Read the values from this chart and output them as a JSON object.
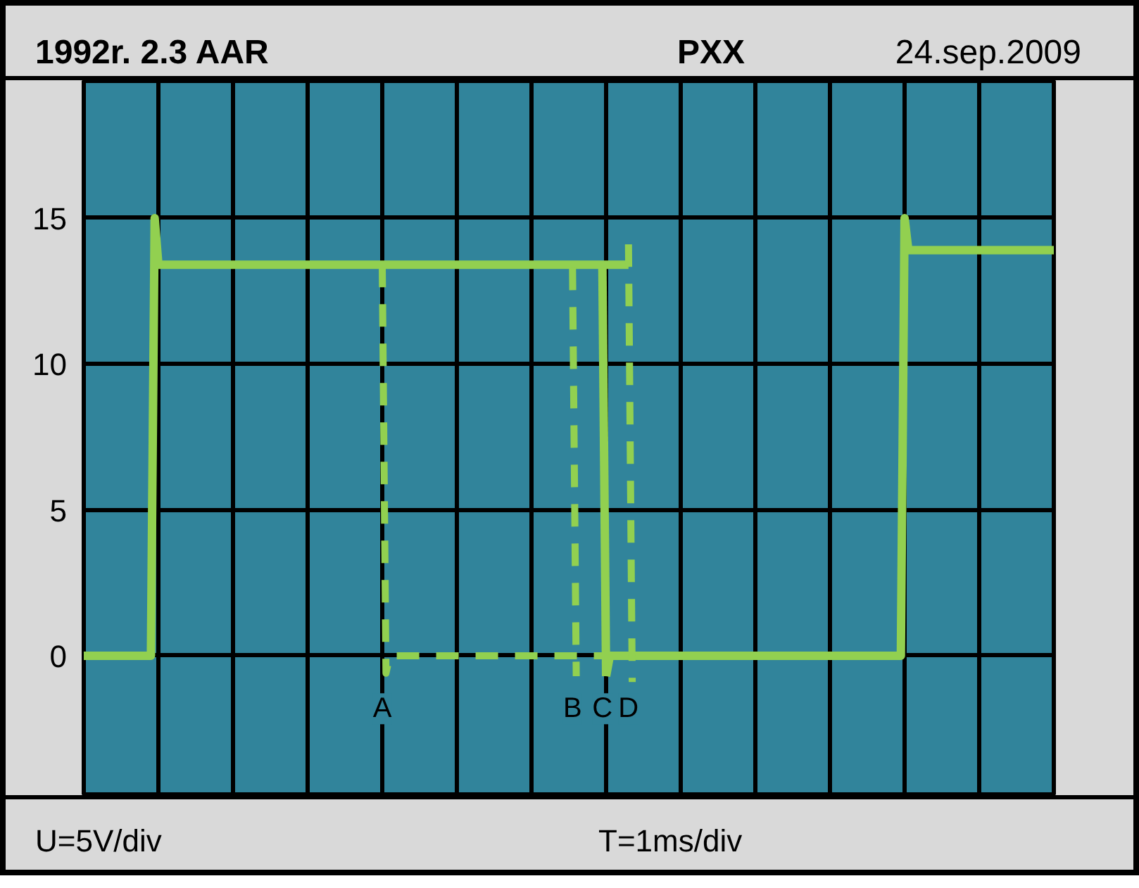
{
  "chart_data": {
    "type": "line",
    "title": "1992r. 2.3 AAR",
    "subtitle": "PXX",
    "xlabel": "T=1ms/div",
    "ylabel": "U=5V/div",
    "annotations": [
      "24.sep.2009"
    ],
    "categories": [
      null,
      null,
      null,
      null,
      null,
      null,
      null,
      null,
      null,
      null,
      null,
      null,
      null,
      null,
      null,
      null,
      null,
      null,
      null,
      null,
      null,
      null,
      null,
      null,
      null,
      null,
      null,
      null,
      null,
      null,
      null,
      null,
      null,
      null,
      null,
      null,
      null,
      null,
      null,
      null,
      null,
      null,
      null,
      null,
      null,
      null,
      null,
      null,
      null,
      null,
      null,
      null,
      null,
      null,
      null,
      null,
      null,
      null,
      null,
      null,
      null,
      null,
      null,
      null,
      null,
      null,
      null,
      null,
      null,
      null,
      null,
      null,
      null,
      null,
      null,
      null,
      null,
      null,
      null,
      null,
      null,
      null,
      null,
      null,
      null,
      null,
      null,
      null,
      null,
      null,
      null,
      null,
      null,
      null,
      null,
      null,
      null,
      null,
      null,
      null,
      null,
      null,
      null,
      null,
      null,
      null,
      null,
      null,
      null,
      null,
      null,
      null,
      null,
      null,
      null,
      null,
      null,
      null,
      null,
      null,
      null,
      null,
      null,
      null,
      null,
      null,
      null,
      null,
      null,
      null,
      null,
      null,
      null,
      null,
      null,
      null,
      null,
      null,
      null,
      null,
      null,
      null,
      null,
      null,
      null,
      null,
      null,
      null,
      null,
      null,
      null,
      null,
      null,
      null,
      null,
      null,
      null,
      null,
      null,
      null,
      null,
      null,
      null,
      null,
      null,
      null,
      null,
      null,
      null,
      null,
      null,
      null,
      null,
      null,
      null,
      null,
      null,
      null,
      null,
      null,
      null,
      null,
      null,
      null,
      null,
      null,
      null,
      null,
      null,
      null,
      null,
      null,
      null,
      null,
      null,
      null,
      null,
      null,
      null,
      null,
      null,
      null,
      null,
      null,
      null,
      null,
      null,
      null,
      null,
      null,
      null,
      null,
      null,
      null,
      null,
      null,
      null,
      null,
      null,
      null,
      null,
      null,
      null,
      null,
      null,
      null,
      null,
      null,
      null,
      null,
      null,
      null,
      null,
      null,
      null,
      null,
      null,
      null,
      null,
      null,
      null,
      null,
      null,
      null,
      null,
      null,
      null,
      null,
      null,
      null,
      null,
      null,
      null,
      null,
      null,
      null,
      null,
      null,
      null,
      null,
      null
    ],
    "ylim": [
      -4.8,
      19.7
    ],
    "yticks": [
      0,
      5,
      10,
      15
    ],
    "tick_labels": "y",
    "grid": true,
    "series": [
      {
        "color": "#92d050",
        "line_style": "solid",
        "values": [
          0,
          0,
          0,
          0,
          0,
          0,
          0,
          0,
          0,
          0,
          0,
          0,
          0,
          0,
          0,
          0,
          0,
          0,
          0,
          15,
          13.4,
          13.4,
          13.4,
          13.4,
          13.4,
          13.4,
          13.4,
          13.4,
          13.4,
          13.4,
          13.4,
          13.4,
          13.4,
          13.4,
          13.4,
          13.4,
          13.4,
          13.4,
          13.4,
          13.4,
          13.4,
          13.4,
          13.4,
          13.4,
          13.4,
          13.4,
          13.4,
          13.4,
          13.4,
          13.4,
          13.4,
          13.4,
          13.4,
          13.4,
          13.4,
          13.4,
          13.4,
          13.4,
          13.4,
          13.4,
          13.4,
          13.4,
          13.4,
          13.4,
          13.4,
          13.4,
          13.4,
          13.4,
          13.4,
          13.4,
          13.4,
          13.4,
          13.4,
          13.4,
          13.4,
          13.4,
          13.4,
          13.4,
          13.4,
          13.4,
          13.4,
          13.4,
          13.4,
          13.4,
          13.4,
          13.4,
          13.4,
          13.4,
          13.4,
          13.4,
          13.4,
          13.4,
          13.4,
          13.4,
          13.4,
          13.4,
          13.4,
          13.4,
          13.4,
          13.4,
          13.4,
          13.4,
          13.4,
          13.4,
          13.4,
          13.4,
          13.4,
          13.4,
          13.4,
          13.4,
          13.4,
          13.4,
          13.4,
          13.4,
          13.4,
          13.4,
          13.4,
          13.4,
          13.4,
          13.4,
          13.4,
          13.4,
          13.4,
          13.4,
          13.4,
          13.4,
          13.4,
          13.4,
          13.4,
          13.4,
          13.4,
          13.4,
          13.4,
          13.4,
          13.4,
          13.4,
          13.4,
          13.4,
          13.4,
          13.4,
          13.4,
          13.4,
          13.4,
          13.4,
          13.4,
          13.4,
          13.4,
          null,
          null,
          null,
          null,
          null,
          null,
          null,
          null,
          null,
          null,
          null,
          null,
          null,
          null,
          null,
          null,
          null,
          null,
          null,
          null,
          null,
          null,
          null,
          null,
          null,
          null,
          null,
          null,
          null,
          null,
          null,
          null,
          null,
          null,
          null,
          null,
          null,
          null,
          null,
          null,
          null,
          null,
          null,
          null,
          null,
          null,
          null,
          null,
          null,
          null,
          null,
          null,
          null,
          null,
          null,
          null,
          null,
          null,
          null,
          null,
          null,
          null,
          null,
          null,
          null,
          null,
          null,
          null,
          null,
          null,
          null,
          null,
          null,
          null,
          null,
          null,
          null,
          null,
          null,
          null,
          null,
          null,
          null,
          null,
          null,
          null,
          null,
          null,
          null,
          null,
          null,
          null,
          null,
          null,
          null,
          null,
          null,
          null,
          null,
          null,
          null,
          null,
          null,
          null,
          null,
          null,
          null,
          null,
          null,
          null,
          null,
          null,
          null,
          null
        ]
      },
      {
        "color": "#92d050",
        "line_style": "solid",
        "values": [
          null,
          null,
          null,
          null,
          null,
          null,
          null,
          null,
          null,
          null,
          null,
          null,
          null,
          null,
          null,
          null,
          null,
          null,
          null,
          null,
          null,
          null,
          null,
          null,
          null,
          null,
          null,
          null,
          null,
          null,
          null,
          null,
          null,
          null,
          null,
          null,
          null,
          null,
          null,
          null,
          null,
          null,
          null,
          null,
          null,
          null,
          null,
          null,
          null,
          null,
          null,
          null,
          null,
          null,
          null,
          null,
          null,
          null,
          null,
          null,
          null,
          null,
          null,
          null,
          null,
          null,
          null,
          null,
          null,
          null,
          null,
          null,
          null,
          null,
          null,
          null,
          null,
          null,
          null,
          null,
          null,
          null,
          null,
          null,
          null,
          null,
          null,
          null,
          null,
          null,
          null,
          null,
          null,
          null,
          null,
          null,
          null,
          null,
          null,
          null,
          null,
          null,
          null,
          null,
          null,
          null,
          null,
          null,
          null,
          null,
          null,
          null,
          null,
          null,
          null,
          null,
          null,
          null,
          null,
          null,
          null,
          null,
          null,
          null,
          null,
          null,
          null,
          null,
          null,
          null,
          null,
          null,
          null,
          null,
          null,
          null,
          null,
          null,
          null,
          null,
          -0.7,
          0,
          0,
          0,
          0,
          0,
          0,
          0,
          0,
          0,
          0,
          0,
          0,
          0,
          0,
          0,
          0,
          0,
          0,
          0,
          0,
          0,
          0,
          0,
          0,
          0,
          0,
          0,
          0,
          0,
          0,
          0,
          0,
          0,
          0,
          0,
          0,
          0,
          0,
          0,
          0,
          0,
          0,
          0,
          0,
          0,
          0,
          0,
          0,
          0,
          0,
          0,
          0,
          0,
          0,
          0,
          0,
          0,
          0,
          0,
          0,
          0,
          0,
          0,
          0,
          0,
          0,
          0,
          0,
          0,
          0,
          0,
          0,
          0,
          0,
          0,
          0,
          0,
          0,
          0,
          15,
          13.9,
          13.9,
          13.9,
          13.9,
          13.9,
          13.9,
          13.9,
          13.9,
          13.9,
          13.9,
          13.9,
          13.9,
          13.9,
          13.9,
          13.9,
          13.9,
          13.9,
          13.9,
          13.9,
          13.9,
          13.9,
          13.9,
          13.9,
          13.9,
          13.9,
          13.9,
          13.9,
          13.9,
          13.9,
          13.9,
          13.9,
          13.9,
          13.9,
          13.9,
          13.9,
          13.9,
          13.9,
          13.9,
          13.9,
          13.9
        ]
      },
      {
        "name": "A",
        "color": "#92d050",
        "line_style": "dashed",
        "values": [
          null,
          null,
          null,
          null,
          null,
          null,
          null,
          null,
          null,
          null,
          null,
          null,
          null,
          null,
          null,
          null,
          null,
          null,
          null,
          null,
          null,
          null,
          null,
          null,
          null,
          null,
          null,
          null,
          null,
          null,
          null,
          null,
          null,
          null,
          null,
          null,
          null,
          null,
          null,
          null,
          null,
          null,
          null,
          null,
          null,
          null,
          null,
          null,
          null,
          null,
          null,
          null,
          null,
          null,
          null,
          null,
          null,
          null,
          null,
          null,
          null,
          null,
          null,
          null,
          null,
          null,
          null,
          null,
          null,
          null,
          null,
          null,
          null,
          null,
          null,
          null,
          null,
          null,
          null,
          null,
          13.4,
          -0.6,
          0,
          0,
          0,
          0,
          0,
          0,
          0,
          0,
          0,
          0,
          0,
          0,
          0,
          0,
          0,
          0,
          0,
          0,
          0,
          0,
          0,
          0,
          0,
          0,
          0,
          0,
          0,
          0,
          0,
          0,
          0,
          0,
          0,
          0,
          0,
          0,
          0,
          0,
          0,
          0,
          0,
          0,
          0,
          0,
          0,
          0,
          0,
          0,
          0,
          0,
          0,
          0,
          0,
          0,
          0,
          0,
          0,
          0,
          0,
          null,
          null,
          null,
          null,
          null,
          null,
          null,
          null,
          null,
          null,
          null,
          null,
          null,
          null,
          null,
          null,
          null,
          null,
          null,
          null,
          null,
          null,
          null,
          null,
          null,
          null,
          null,
          null,
          null,
          null,
          null,
          null,
          null,
          null,
          null,
          null,
          null,
          null,
          null,
          null,
          null,
          null,
          null,
          null,
          null,
          null,
          null,
          null,
          null,
          null,
          null,
          null,
          null,
          null,
          null,
          null,
          null,
          null,
          null,
          null,
          null,
          null,
          null,
          null,
          null,
          null,
          null,
          null,
          null,
          null,
          null,
          null,
          null,
          null,
          null,
          null,
          null,
          null,
          null,
          null,
          null,
          null,
          null,
          null,
          null,
          null,
          null,
          null,
          null,
          null,
          null,
          null,
          null,
          null,
          null,
          null,
          null,
          null,
          null,
          null,
          null,
          null,
          null,
          null,
          null,
          null,
          null,
          null,
          null,
          null,
          null,
          null,
          null,
          null,
          null,
          null,
          null,
          null,
          null,
          null
        ]
      },
      {
        "name": "B",
        "color": "#92d050",
        "line_style": "dashed",
        "values": [
          null,
          null,
          null,
          null,
          null,
          null,
          null,
          null,
          null,
          null,
          null,
          null,
          null,
          null,
          null,
          null,
          null,
          null,
          null,
          null,
          null,
          null,
          null,
          null,
          null,
          null,
          null,
          null,
          null,
          null,
          null,
          null,
          null,
          null,
          null,
          null,
          null,
          null,
          null,
          null,
          null,
          null,
          null,
          null,
          null,
          null,
          null,
          null,
          null,
          null,
          null,
          null,
          null,
          null,
          null,
          null,
          null,
          null,
          null,
          null,
          null,
          null,
          null,
          null,
          null,
          null,
          null,
          null,
          null,
          null,
          null,
          null,
          null,
          null,
          null,
          null,
          null,
          null,
          null,
          null,
          null,
          null,
          null,
          null,
          null,
          null,
          null,
          null,
          null,
          null,
          null,
          null,
          null,
          null,
          null,
          null,
          null,
          null,
          null,
          null,
          null,
          null,
          null,
          null,
          null,
          null,
          null,
          null,
          null,
          null,
          null,
          null,
          null,
          null,
          null,
          null,
          null,
          null,
          null,
          null,
          null,
          null,
          null,
          null,
          null,
          null,
          null,
          null,
          null,
          null,
          null,
          13.3,
          -0.7,
          null,
          null,
          null,
          null,
          null,
          null,
          null,
          null,
          null,
          null,
          null,
          null,
          null,
          null,
          null,
          null,
          null,
          null,
          null,
          null,
          null,
          null,
          null,
          null,
          null,
          null,
          null,
          null,
          null,
          null,
          null,
          null,
          null,
          null,
          null,
          null,
          null,
          null,
          null,
          null,
          null,
          null,
          null,
          null,
          null,
          null,
          null,
          null,
          null,
          null,
          null,
          null,
          null,
          null,
          null,
          null,
          null,
          null,
          null,
          null,
          null,
          null,
          null,
          null,
          null,
          null,
          null,
          null,
          null,
          null,
          null,
          null,
          null,
          null,
          null,
          null,
          null,
          null,
          null,
          null,
          null,
          null,
          null,
          null,
          null,
          null,
          null,
          null,
          null,
          null,
          null,
          null,
          null,
          null,
          null,
          null,
          null,
          null,
          null,
          null,
          null,
          null,
          null,
          null,
          null,
          null,
          null,
          null,
          null,
          null,
          null,
          null,
          null,
          null,
          null,
          null,
          null,
          null,
          null,
          null,
          null,
          null,
          null,
          null,
          null,
          null,
          null,
          null
        ]
      },
      {
        "name": "C",
        "color": "#92d050",
        "line_style": "solid",
        "values": [
          null,
          null,
          null,
          null,
          null,
          null,
          null,
          null,
          null,
          null,
          null,
          null,
          null,
          null,
          null,
          null,
          null,
          null,
          null,
          null,
          null,
          null,
          null,
          null,
          null,
          null,
          null,
          null,
          null,
          null,
          null,
          null,
          null,
          null,
          null,
          null,
          null,
          null,
          null,
          null,
          null,
          null,
          null,
          null,
          null,
          null,
          null,
          null,
          null,
          null,
          null,
          null,
          null,
          null,
          null,
          null,
          null,
          null,
          null,
          null,
          null,
          null,
          null,
          null,
          null,
          null,
          null,
          null,
          null,
          null,
          null,
          null,
          null,
          null,
          null,
          null,
          null,
          null,
          null,
          null,
          null,
          null,
          null,
          null,
          null,
          null,
          null,
          null,
          null,
          null,
          null,
          null,
          null,
          null,
          null,
          null,
          null,
          null,
          null,
          null,
          null,
          null,
          null,
          null,
          null,
          null,
          null,
          null,
          null,
          null,
          null,
          null,
          null,
          null,
          null,
          null,
          null,
          null,
          null,
          null,
          null,
          null,
          null,
          null,
          null,
          null,
          null,
          null,
          null,
          null,
          null,
          null,
          null,
          null,
          null,
          null,
          null,
          null,
          null,
          13.4,
          -0.7,
          null,
          null,
          null,
          null,
          null,
          null,
          null,
          null,
          null,
          null,
          null,
          null,
          null,
          null,
          null,
          null,
          null,
          null,
          null,
          null,
          null,
          null,
          null,
          null,
          null,
          null,
          null,
          null,
          null,
          null,
          null,
          null,
          null,
          null,
          null,
          null,
          null,
          null,
          null,
          null,
          null,
          null,
          null,
          null,
          null,
          null,
          null,
          null,
          null,
          null,
          null,
          null,
          null,
          null,
          null,
          null,
          null,
          null,
          null,
          null,
          null,
          null,
          null,
          null,
          null,
          null,
          null,
          null,
          null,
          null,
          null,
          null,
          null,
          null,
          null,
          null,
          null,
          null,
          null,
          null,
          null,
          null,
          null,
          null,
          null,
          null,
          null,
          null,
          null,
          null,
          null,
          null,
          null,
          null,
          null,
          null,
          null,
          null,
          null,
          null,
          null,
          null,
          null,
          null,
          null,
          null,
          null,
          null,
          null,
          null,
          null,
          null,
          null,
          null,
          null,
          null,
          null,
          null,
          null,
          null
        ]
      },
      {
        "name": "D",
        "color": "#92d050",
        "line_style": "dashed",
        "values": [
          null,
          null,
          null,
          null,
          null,
          null,
          null,
          null,
          null,
          null,
          null,
          null,
          null,
          null,
          null,
          null,
          null,
          null,
          null,
          null,
          null,
          null,
          null,
          null,
          null,
          null,
          null,
          null,
          null,
          null,
          null,
          null,
          null,
          null,
          null,
          null,
          null,
          null,
          null,
          null,
          null,
          null,
          null,
          null,
          null,
          null,
          null,
          null,
          null,
          null,
          null,
          null,
          null,
          null,
          null,
          null,
          null,
          null,
          null,
          null,
          null,
          null,
          null,
          null,
          null,
          null,
          null,
          null,
          null,
          null,
          null,
          null,
          null,
          null,
          null,
          null,
          null,
          null,
          null,
          null,
          null,
          null,
          null,
          null,
          null,
          null,
          null,
          null,
          null,
          null,
          null,
          null,
          null,
          null,
          null,
          null,
          null,
          null,
          null,
          null,
          null,
          null,
          null,
          null,
          null,
          null,
          null,
          null,
          null,
          null,
          null,
          null,
          null,
          null,
          null,
          null,
          null,
          null,
          null,
          null,
          null,
          null,
          null,
          null,
          null,
          null,
          null,
          null,
          null,
          null,
          null,
          null,
          null,
          null,
          null,
          null,
          null,
          null,
          null,
          null,
          null,
          null,
          null,
          null,
          null,
          null,
          14.1,
          -0.9,
          null,
          null,
          null,
          null,
          null,
          null,
          null,
          null,
          null,
          null,
          null,
          null,
          null,
          null,
          null,
          null,
          null,
          null,
          null,
          null,
          null,
          null,
          null,
          null,
          null,
          null,
          null,
          null,
          null,
          null,
          null,
          null,
          null,
          null,
          null,
          null,
          null,
          null,
          null,
          null,
          null,
          null,
          null,
          null,
          null,
          null,
          null,
          null,
          null,
          null,
          null,
          null,
          null,
          null,
          null,
          null,
          null,
          null,
          null,
          null,
          null,
          null,
          null,
          null,
          null,
          null,
          null,
          null,
          null,
          null,
          null,
          null,
          null,
          null,
          null,
          null,
          null,
          null,
          null,
          null,
          null,
          null,
          null,
          null,
          null,
          null,
          null,
          null,
          null,
          null,
          null,
          null,
          null,
          null,
          null,
          null,
          null,
          null,
          null,
          null,
          null,
          null,
          null,
          null,
          null,
          null,
          null,
          null,
          null,
          null,
          null,
          null,
          null
        ]
      }
    ]
  }
}
